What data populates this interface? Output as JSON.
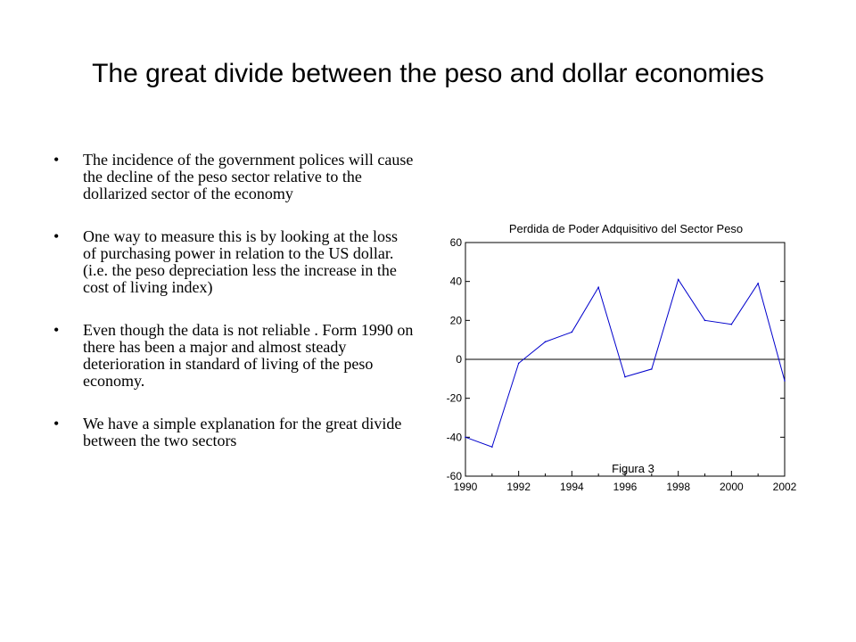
{
  "slide": {
    "title": "The great divide between the peso and dollar economies",
    "bullet_glyph": "•",
    "bullets": [
      "The incidence of the government polices will cause the decline of the peso sector relative to the dollarized sector of the economy",
      "One way to measure this is by looking at the loss of purchasing power in relation to the US dollar. (i.e. the peso depreciation less the increase in the cost of living index)",
      "Even though the data is not reliable . Form 1990 on there has been a major and almost steady deterioration in standard of living of the peso economy.",
      "We have a simple explanation for the great divide between the two sectors"
    ]
  },
  "chart_data": {
    "type": "line",
    "title": "Perdida de Poder Adquisitivo del Sector Peso",
    "annotation": "Figura 3",
    "xlabel": "",
    "ylabel": "",
    "x": [
      1990,
      1991,
      1992,
      1993,
      1994,
      1995,
      1996,
      1997,
      1998,
      1999,
      2000,
      2001,
      2002
    ],
    "series": [
      {
        "values": [
          -40,
          -45,
          -2,
          9,
          14,
          37,
          -9,
          -5,
          41,
          20,
          18,
          39,
          -11
        ]
      }
    ],
    "xlim": [
      1990,
      2002
    ],
    "ylim": [
      -60,
      60
    ],
    "x_ticks": [
      1990,
      1992,
      1994,
      1996,
      1998,
      2000,
      2002
    ],
    "y_ticks": [
      -60,
      -40,
      -20,
      0,
      20,
      40,
      60
    ],
    "zero_line": true,
    "grid": false,
    "legend": "none",
    "line_color": "#0000cc"
  }
}
